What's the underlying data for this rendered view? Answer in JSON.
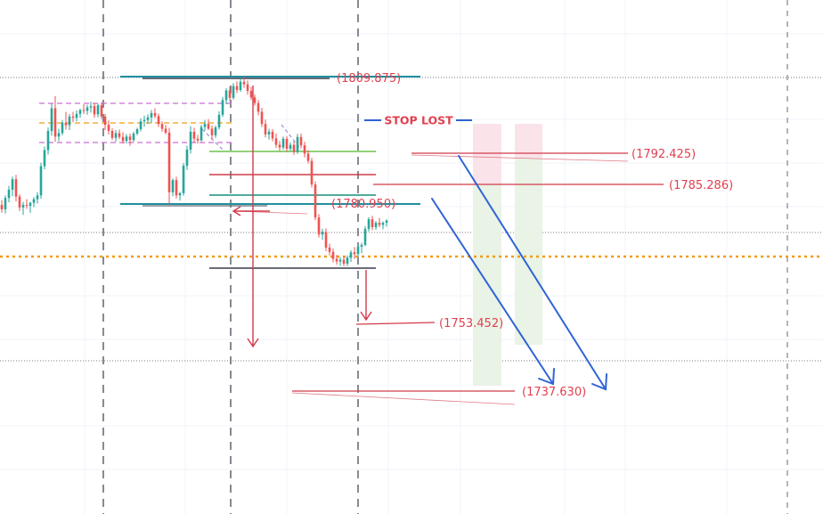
{
  "chart_data": {
    "type": "candlestick",
    "price_range": [
      1734,
      1825
    ],
    "annotations": {
      "stop_lost": "STOP LOST",
      "levels": [
        {
          "price": 1809.875,
          "label": "(1809.875)"
        },
        {
          "price": 1792.425,
          "label": "(1792.425)"
        },
        {
          "price": 1785.286,
          "label": "(1785.286)"
        },
        {
          "price": 1780.95,
          "label": "(1780.950)"
        },
        {
          "price": 1753.452,
          "label": "(1753.452)"
        },
        {
          "price": 1737.63,
          "label": "(1737.630)"
        }
      ]
    },
    "colors": {
      "bull": "#26a69a",
      "bear": "#ef5350",
      "label": "#e0404f",
      "arrow_blue": "#2f64d6",
      "orange_line": "#f39c12"
    },
    "candles": [
      [
        1780.4,
        1781.5,
        1778.6,
        1779.4
      ],
      [
        1779.4,
        1782.6,
        1778.4,
        1782.0
      ],
      [
        1782.0,
        1784.8,
        1781.0,
        1783.9
      ],
      [
        1783.9,
        1786.9,
        1782.4,
        1786.3
      ],
      [
        1786.3,
        1787.3,
        1781.2,
        1782.3
      ],
      [
        1782.3,
        1782.8,
        1779.0,
        1779.8
      ],
      [
        1779.8,
        1781.1,
        1778.1,
        1780.4
      ],
      [
        1780.4,
        1781.7,
        1779.5,
        1780.2
      ],
      [
        1780.2,
        1781.1,
        1778.6,
        1780.9
      ],
      [
        1780.9,
        1782.2,
        1779.9,
        1781.7
      ],
      [
        1781.7,
        1783.3,
        1780.7,
        1782.6
      ],
      [
        1782.6,
        1790.1,
        1781.8,
        1789.3
      ],
      [
        1789.3,
        1793.8,
        1788.6,
        1793.0
      ],
      [
        1793.0,
        1798.2,
        1792.0,
        1797.4
      ],
      [
        1797.4,
        1803.6,
        1796.3,
        1802.6
      ],
      [
        1802.6,
        1805.4,
        1794.9,
        1796.1
      ],
      [
        1796.1,
        1797.9,
        1795.0,
        1796.9
      ],
      [
        1796.9,
        1799.9,
        1796.4,
        1799.3
      ],
      [
        1799.3,
        1801.8,
        1797.7,
        1798.7
      ],
      [
        1798.7,
        1801.3,
        1797.6,
        1800.7
      ],
      [
        1800.7,
        1801.8,
        1799.4,
        1800.4
      ],
      [
        1800.4,
        1802.1,
        1799.6,
        1801.3
      ],
      [
        1801.3,
        1802.5,
        1800.4,
        1802.2
      ],
      [
        1802.2,
        1803.5,
        1801.3,
        1802.0
      ],
      [
        1802.0,
        1803.4,
        1801.1,
        1802.8
      ],
      [
        1802.8,
        1804.1,
        1801.6,
        1803.1
      ],
      [
        1803.1,
        1803.8,
        1800.4,
        1801.2
      ],
      [
        1801.2,
        1803.6,
        1800.5,
        1803.3
      ],
      [
        1803.3,
        1804.0,
        1800.1,
        1800.7
      ],
      [
        1800.7,
        1801.3,
        1797.6,
        1798.8
      ],
      [
        1798.8,
        1799.8,
        1796.6,
        1797.4
      ],
      [
        1797.4,
        1798.0,
        1795.3,
        1795.8
      ],
      [
        1795.8,
        1797.6,
        1794.9,
        1796.9
      ],
      [
        1796.9,
        1797.7,
        1795.5,
        1796.0
      ],
      [
        1796.0,
        1797.1,
        1794.5,
        1795.1
      ],
      [
        1795.1,
        1796.7,
        1794.5,
        1796.1
      ],
      [
        1796.1,
        1796.8,
        1794.0,
        1795.3
      ],
      [
        1795.3,
        1797.2,
        1794.9,
        1796.8
      ],
      [
        1796.8,
        1798.1,
        1796.4,
        1797.8
      ],
      [
        1797.8,
        1800.3,
        1797.3,
        1799.6
      ],
      [
        1799.6,
        1800.9,
        1798.4,
        1799.9
      ],
      [
        1799.9,
        1801.2,
        1799.0,
        1800.5
      ],
      [
        1800.5,
        1802.2,
        1799.2,
        1801.5
      ],
      [
        1801.5,
        1802.6,
        1800.3,
        1800.8
      ],
      [
        1800.8,
        1801.4,
        1798.3,
        1799.0
      ],
      [
        1799.0,
        1799.6,
        1797.2,
        1797.9
      ],
      [
        1797.9,
        1798.8,
        1796.6,
        1797.0
      ],
      [
        1797.0,
        1798.1,
        1780.7,
        1783.3
      ],
      [
        1783.3,
        1786.5,
        1782.4,
        1786.1
      ],
      [
        1786.1,
        1786.9,
        1781.9,
        1782.6
      ],
      [
        1782.6,
        1783.4,
        1781.4,
        1783.1
      ],
      [
        1783.1,
        1790.0,
        1782.5,
        1789.4
      ],
      [
        1789.4,
        1794.0,
        1788.4,
        1793.1
      ],
      [
        1793.1,
        1798.5,
        1792.2,
        1797.2
      ],
      [
        1797.2,
        1798.1,
        1794.7,
        1795.6
      ],
      [
        1795.6,
        1796.5,
        1794.5,
        1795.2
      ],
      [
        1795.2,
        1798.8,
        1795.0,
        1798.3
      ],
      [
        1798.3,
        1799.9,
        1797.5,
        1799.0
      ],
      [
        1799.0,
        1800.1,
        1797.6,
        1797.9
      ],
      [
        1797.9,
        1798.7,
        1795.4,
        1796.4
      ],
      [
        1796.4,
        1798.6,
        1795.8,
        1798.2
      ],
      [
        1798.2,
        1801.9,
        1797.7,
        1801.1
      ],
      [
        1801.1,
        1805.2,
        1800.6,
        1804.5
      ],
      [
        1804.5,
        1807.2,
        1803.5,
        1806.7
      ],
      [
        1806.7,
        1807.6,
        1804.3,
        1805.0
      ],
      [
        1805.0,
        1808.4,
        1804.6,
        1807.7
      ],
      [
        1807.7,
        1808.8,
        1806.1,
        1806.8
      ],
      [
        1806.8,
        1809.5,
        1806.4,
        1808.7
      ],
      [
        1808.7,
        1809.8,
        1807.3,
        1808.1
      ],
      [
        1808.1,
        1809.0,
        1805.7,
        1806.6
      ],
      [
        1806.6,
        1807.5,
        1804.5,
        1805.1
      ],
      [
        1805.1,
        1805.7,
        1803.2,
        1803.8
      ],
      [
        1803.8,
        1804.5,
        1801.0,
        1801.8
      ],
      [
        1801.8,
        1802.7,
        1798.3,
        1799.0
      ],
      [
        1799.0,
        1800.0,
        1795.9,
        1796.6
      ],
      [
        1796.6,
        1797.9,
        1795.4,
        1797.2
      ],
      [
        1797.2,
        1797.8,
        1795.0,
        1795.7
      ],
      [
        1795.7,
        1796.8,
        1793.5,
        1794.2
      ],
      [
        1794.2,
        1795.1,
        1792.8,
        1793.6
      ],
      [
        1793.6,
        1796.1,
        1793.1,
        1795.6
      ],
      [
        1795.6,
        1796.2,
        1792.6,
        1793.3
      ],
      [
        1793.3,
        1794.8,
        1792.8,
        1794.2
      ],
      [
        1794.2,
        1795.0,
        1791.9,
        1792.6
      ],
      [
        1792.6,
        1796.7,
        1792.1,
        1796.0
      ],
      [
        1796.0,
        1796.8,
        1793.4,
        1794.1
      ],
      [
        1794.1,
        1794.9,
        1791.3,
        1792.2
      ],
      [
        1792.2,
        1793.0,
        1789.9,
        1790.5
      ],
      [
        1790.5,
        1791.2,
        1784.4,
        1785.1
      ],
      [
        1785.1,
        1785.8,
        1776.9,
        1777.5
      ],
      [
        1777.5,
        1778.3,
        1772.9,
        1773.6
      ],
      [
        1773.6,
        1774.9,
        1772.4,
        1774.2
      ],
      [
        1774.2,
        1775.0,
        1769.8,
        1770.6
      ],
      [
        1770.6,
        1771.5,
        1768.8,
        1769.6
      ],
      [
        1769.6,
        1770.4,
        1767.2,
        1768.0
      ],
      [
        1768.0,
        1768.9,
        1766.7,
        1767.4
      ],
      [
        1767.4,
        1768.4,
        1766.4,
        1767.8
      ],
      [
        1767.8,
        1768.6,
        1766.3,
        1766.9
      ],
      [
        1766.9,
        1768.8,
        1766.3,
        1768.3
      ],
      [
        1768.3,
        1770.0,
        1767.3,
        1769.5
      ],
      [
        1769.5,
        1770.7,
        1768.0,
        1769.1
      ],
      [
        1769.1,
        1771.3,
        1768.6,
        1770.8
      ],
      [
        1770.8,
        1771.7,
        1769.3,
        1771.2
      ],
      [
        1771.2,
        1775.5,
        1770.9,
        1774.9
      ],
      [
        1774.9,
        1777.6,
        1774.3,
        1777.1
      ],
      [
        1777.1,
        1777.9,
        1774.6,
        1775.3
      ],
      [
        1775.3,
        1776.7,
        1774.7,
        1776.3
      ],
      [
        1776.3,
        1777.4,
        1775.3,
        1775.8
      ],
      [
        1775.8,
        1776.6,
        1774.8,
        1776.3
      ],
      [
        1776.3,
        1777.1,
        1775.4,
        1776.8
      ]
    ]
  }
}
